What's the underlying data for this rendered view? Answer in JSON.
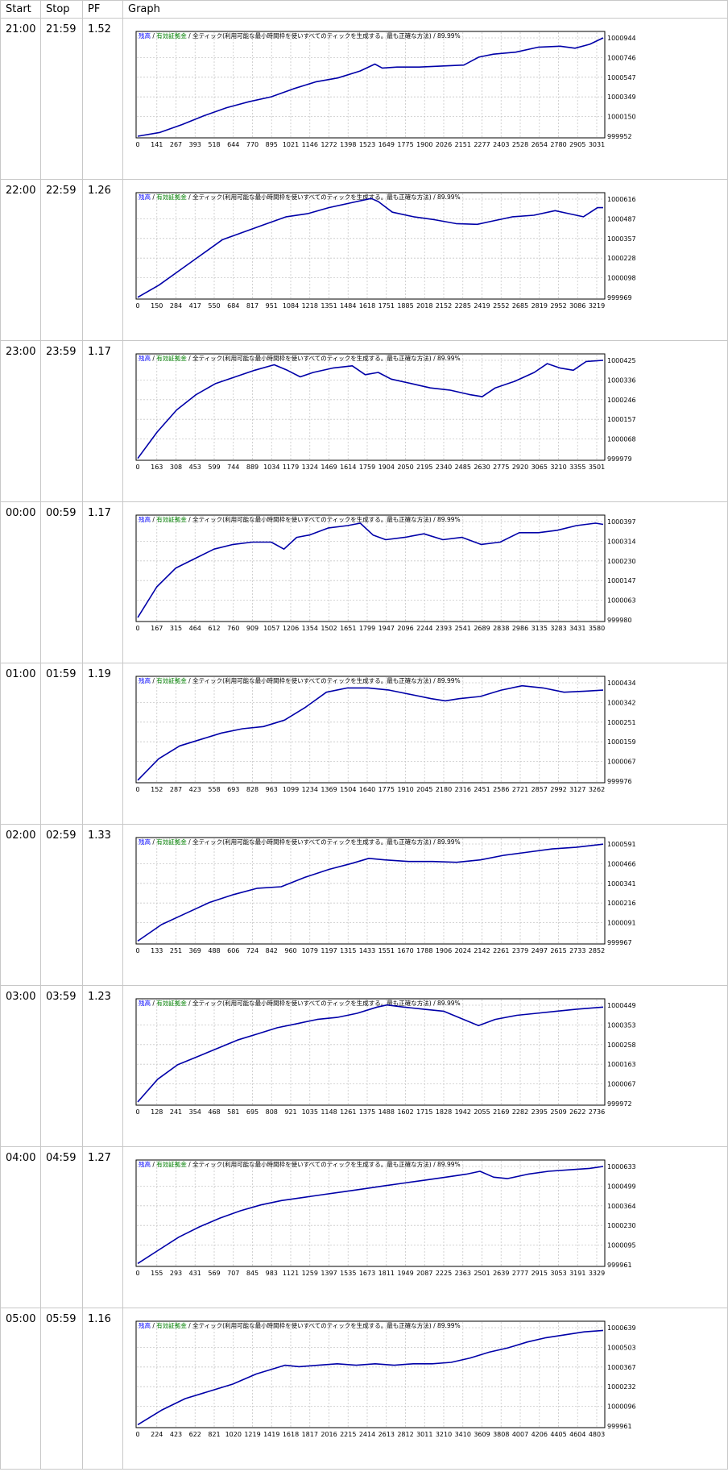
{
  "headers": {
    "start": "Start",
    "stop": "Stop",
    "pf": "PF",
    "graph": "Graph"
  },
  "colors": {
    "line": "#0000a8",
    "grid": "#c8c8c8",
    "title_blue": "#0000ff",
    "title_green": "#008000"
  },
  "rows": [
    {
      "start": "21:00",
      "stop": "21:59",
      "pf": "1.52",
      "chart_data": {
        "type": "line",
        "title_parts": {
          "balance": "残高",
          "sep1": " / ",
          "margin": "有効証拠金",
          "sep2": " / ",
          "mode": "全ティック(利用可能な最小時間枠を使いすべてのティックを生成する。最も正確な方法)",
          "quality": " / 89.99%"
        },
        "x_ticks": [
          "0",
          "141",
          "267",
          "393",
          "518",
          "644",
          "770",
          "895",
          "1021",
          "1146",
          "1272",
          "1398",
          "1523",
          "1649",
          "1775",
          "1900",
          "2026",
          "2151",
          "2277",
          "2403",
          "2528",
          "2654",
          "2780",
          "2905",
          "3031"
        ],
        "y_ticks": [
          "1000944",
          "1000746",
          "1000547",
          "1000349",
          "1000150",
          "999952"
        ],
        "xlim": [
          0,
          3140
        ],
        "ylim": [
          999952,
          1000944
        ],
        "x": [
          0,
          150,
          300,
          450,
          600,
          750,
          900,
          1050,
          1200,
          1350,
          1500,
          1600,
          1650,
          1750,
          1900,
          2050,
          2200,
          2300,
          2400,
          2550,
          2700,
          2850,
          2950,
          3050,
          3140
        ],
        "y": [
          999952,
          999990,
          1000070,
          1000160,
          1000240,
          1000300,
          1000350,
          1000430,
          1000500,
          1000540,
          1000610,
          1000680,
          1000640,
          1000650,
          1000650,
          1000660,
          1000670,
          1000750,
          1000780,
          1000800,
          1000850,
          1000860,
          1000840,
          1000880,
          1000944
        ]
      }
    },
    {
      "start": "22:00",
      "stop": "22:59",
      "pf": "1.26",
      "chart_data": {
        "type": "line",
        "title_parts": {
          "balance": "残高",
          "sep1": " / ",
          "margin": "有効証拠金",
          "sep2": " / ",
          "mode": "全ティック(利用可能な最小時間枠を使いすべてのティックを生成する。最も正確な方法)",
          "quality": " / 89.99%"
        },
        "x_ticks": [
          "0",
          "150",
          "284",
          "417",
          "550",
          "684",
          "817",
          "951",
          "1084",
          "1218",
          "1351",
          "1484",
          "1618",
          "1751",
          "1885",
          "2018",
          "2152",
          "2285",
          "2419",
          "2552",
          "2685",
          "2819",
          "2952",
          "3086",
          "3219"
        ],
        "y_ticks": [
          "1000616",
          "1000487",
          "1000357",
          "1000228",
          "1000098",
          "999969"
        ],
        "xlim": [
          0,
          3290
        ],
        "ylim": [
          999969,
          1000616
        ],
        "x": [
          0,
          150,
          300,
          450,
          600,
          750,
          900,
          1050,
          1200,
          1350,
          1500,
          1650,
          1700,
          1800,
          1950,
          2100,
          2250,
          2400,
          2500,
          2650,
          2800,
          2950,
          3050,
          3150,
          3250,
          3290
        ],
        "y": [
          999970,
          1000050,
          1000150,
          1000250,
          1000350,
          1000400,
          1000450,
          1000500,
          1000520,
          1000560,
          1000590,
          1000620,
          1000600,
          1000530,
          1000500,
          1000480,
          1000455,
          1000450,
          1000470,
          1000500,
          1000510,
          1000540,
          1000520,
          1000500,
          1000560,
          1000560
        ]
      }
    },
    {
      "start": "23:00",
      "stop": "23:59",
      "pf": "1.17",
      "chart_data": {
        "type": "line",
        "title_parts": {
          "balance": "残高",
          "sep1": " / ",
          "margin": "有効証拠金",
          "sep2": " / ",
          "mode": "全ティック(利用可能な最小時間枠を使いすべてのティックを生成する。最も正確な方法)",
          "quality": " / 89.99%"
        },
        "x_ticks": [
          "0",
          "163",
          "308",
          "453",
          "599",
          "744",
          "889",
          "1034",
          "1179",
          "1324",
          "1469",
          "1614",
          "1759",
          "1904",
          "2050",
          "2195",
          "2340",
          "2485",
          "2630",
          "2775",
          "2920",
          "3065",
          "3210",
          "3355",
          "3501"
        ],
        "y_ticks": [
          "1000425",
          "1000336",
          "1000246",
          "1000157",
          "1000068",
          "999979"
        ],
        "xlim": [
          0,
          3580
        ],
        "ylim": [
          999979,
          1000425
        ],
        "x": [
          0,
          150,
          300,
          450,
          600,
          750,
          900,
          1050,
          1150,
          1250,
          1350,
          1500,
          1650,
          1750,
          1850,
          1950,
          2100,
          2250,
          2400,
          2550,
          2650,
          2750,
          2900,
          3050,
          3150,
          3250,
          3350,
          3450,
          3580
        ],
        "y": [
          999980,
          1000100,
          1000200,
          1000270,
          1000320,
          1000350,
          1000380,
          1000405,
          1000380,
          1000350,
          1000370,
          1000390,
          1000400,
          1000360,
          1000370,
          1000340,
          1000320,
          1000300,
          1000290,
          1000270,
          1000260,
          1000300,
          1000330,
          1000370,
          1000410,
          1000390,
          1000380,
          1000420,
          1000425
        ]
      }
    },
    {
      "start": "00:00",
      "stop": "00:59",
      "pf": "1.17",
      "chart_data": {
        "type": "line",
        "title_parts": {
          "balance": "残高",
          "sep1": " / ",
          "margin": "有効証拠金",
          "sep2": " / ",
          "mode": "全ティック(利用可能な最小時間枠を使いすべてのティックを生成する。最も正確な方法)",
          "quality": " / 89.99%"
        },
        "x_ticks": [
          "0",
          "167",
          "315",
          "464",
          "612",
          "760",
          "909",
          "1057",
          "1206",
          "1354",
          "1502",
          "1651",
          "1799",
          "1947",
          "2096",
          "2244",
          "2393",
          "2541",
          "2689",
          "2838",
          "2986",
          "3135",
          "3283",
          "3431",
          "3580"
        ],
        "y_ticks": [
          "1000397",
          "1000314",
          "1000230",
          "1000147",
          "1000063",
          "999980"
        ],
        "xlim": [
          0,
          3660
        ],
        "ylim": [
          999980,
          1000397
        ],
        "x": [
          0,
          150,
          300,
          450,
          600,
          750,
          900,
          1050,
          1150,
          1250,
          1350,
          1500,
          1650,
          1750,
          1850,
          1950,
          2100,
          2250,
          2400,
          2550,
          2700,
          2850,
          3000,
          3150,
          3300,
          3450,
          3600,
          3660
        ],
        "y": [
          999990,
          1000120,
          1000200,
          1000240,
          1000280,
          1000300,
          1000310,
          1000310,
          1000280,
          1000330,
          1000340,
          1000370,
          1000380,
          1000390,
          1000340,
          1000320,
          1000330,
          1000345,
          1000320,
          1000330,
          1000300,
          1000310,
          1000350,
          1000350,
          1000360,
          1000380,
          1000390,
          1000385
        ]
      }
    },
    {
      "start": "01:00",
      "stop": "01:59",
      "pf": "1.19",
      "chart_data": {
        "type": "line",
        "title_parts": {
          "balance": "残高",
          "sep1": " / ",
          "margin": "有効証拠金",
          "sep2": " / ",
          "mode": "全ティック(利用可能な最小時間枠を使いすべてのティックを生成する。最も正確な方法)",
          "quality": " / 89.99%"
        },
        "x_ticks": [
          "0",
          "152",
          "287",
          "423",
          "558",
          "693",
          "828",
          "963",
          "1099",
          "1234",
          "1369",
          "1504",
          "1640",
          "1775",
          "1910",
          "2045",
          "2180",
          "2316",
          "2451",
          "2586",
          "2721",
          "2857",
          "2992",
          "3127",
          "3262"
        ],
        "y_ticks": [
          "1000434",
          "1000342",
          "1000251",
          "1000159",
          "1000067",
          "999976"
        ],
        "xlim": [
          0,
          3330
        ],
        "ylim": [
          999976,
          1000434
        ],
        "x": [
          0,
          150,
          300,
          450,
          600,
          750,
          900,
          1050,
          1200,
          1350,
          1500,
          1650,
          1800,
          1950,
          2100,
          2200,
          2300,
          2450,
          2600,
          2750,
          2900,
          3050,
          3200,
          3330
        ],
        "y": [
          999980,
          1000080,
          1000140,
          1000170,
          1000200,
          1000220,
          1000230,
          1000260,
          1000320,
          1000390,
          1000410,
          1000410,
          1000400,
          1000380,
          1000360,
          1000350,
          1000360,
          1000370,
          1000400,
          1000420,
          1000410,
          1000390,
          1000395,
          1000400
        ]
      }
    },
    {
      "start": "02:00",
      "stop": "02:59",
      "pf": "1.33",
      "chart_data": {
        "type": "line",
        "title_parts": {
          "balance": "残高",
          "sep1": " / ",
          "margin": "有効証拠金",
          "sep2": " / ",
          "mode": "全ティック(利用可能な最小時間枠を使いすべてのティックを生成する。最も正確な方法)",
          "quality": " / 89.99%"
        },
        "x_ticks": [
          "0",
          "133",
          "251",
          "369",
          "488",
          "606",
          "724",
          "842",
          "960",
          "1079",
          "1197",
          "1315",
          "1433",
          "1551",
          "1670",
          "1788",
          "1906",
          "2024",
          "2142",
          "2261",
          "2379",
          "2497",
          "2615",
          "2733",
          "2852"
        ],
        "y_ticks": [
          "1000591",
          "1000466",
          "1000341",
          "1000216",
          "1000091",
          "999967"
        ],
        "xlim": [
          0,
          2920
        ],
        "ylim": [
          999967,
          1000591
        ],
        "x": [
          0,
          150,
          300,
          450,
          600,
          750,
          900,
          1050,
          1200,
          1350,
          1450,
          1550,
          1700,
          1850,
          2000,
          2150,
          2300,
          2450,
          2600,
          2750,
          2920
        ],
        "y": [
          999975,
          1000080,
          1000150,
          1000220,
          1000270,
          1000310,
          1000320,
          1000380,
          1000430,
          1000470,
          1000500,
          1000490,
          1000480,
          1000480,
          1000475,
          1000490,
          1000520,
          1000540,
          1000560,
          1000570,
          1000590
        ]
      }
    },
    {
      "start": "03:00",
      "stop": "03:59",
      "pf": "1.23",
      "chart_data": {
        "type": "line",
        "title_parts": {
          "balance": "残高",
          "sep1": " / ",
          "margin": "有効証拠金",
          "sep2": " / ",
          "mode": "全ティック(利用可能な最小時間枠を使いすべてのティックを生成する。最も正確な方法)",
          "quality": " / 89.99%"
        },
        "x_ticks": [
          "0",
          "128",
          "241",
          "354",
          "468",
          "581",
          "695",
          "808",
          "921",
          "1035",
          "1148",
          "1261",
          "1375",
          "1488",
          "1602",
          "1715",
          "1828",
          "1942",
          "2055",
          "2169",
          "2282",
          "2395",
          "2509",
          "2622",
          "2736"
        ],
        "y_ticks": [
          "1000449",
          "1000353",
          "1000258",
          "1000163",
          "1000067",
          "999972"
        ],
        "xlim": [
          0,
          2800
        ],
        "ylim": [
          999972,
          1000449
        ],
        "x": [
          0,
          120,
          240,
          360,
          480,
          600,
          720,
          840,
          960,
          1080,
          1200,
          1320,
          1440,
          1500,
          1600,
          1720,
          1840,
          1960,
          2050,
          2150,
          2280,
          2400,
          2520,
          2640,
          2800
        ],
        "y": [
          999980,
          1000090,
          1000160,
          1000200,
          1000240,
          1000280,
          1000310,
          1000340,
          1000360,
          1000380,
          1000390,
          1000410,
          1000440,
          1000450,
          1000440,
          1000430,
          1000420,
          1000380,
          1000350,
          1000380,
          1000400,
          1000410,
          1000420,
          1000430,
          1000440
        ]
      }
    },
    {
      "start": "04:00",
      "stop": "04:59",
      "pf": "1.27",
      "chart_data": {
        "type": "line",
        "title_parts": {
          "balance": "残高",
          "sep1": " / ",
          "margin": "有効証拠金",
          "sep2": " / ",
          "mode": "全ティック(利用可能な最小時間枠を使いすべてのティックを生成する。最も正確な方法)",
          "quality": " / 89.99%"
        },
        "x_ticks": [
          "0",
          "155",
          "293",
          "431",
          "569",
          "707",
          "845",
          "983",
          "1121",
          "1259",
          "1397",
          "1535",
          "1673",
          "1811",
          "1949",
          "2087",
          "2225",
          "2363",
          "2501",
          "2639",
          "2777",
          "2915",
          "3053",
          "3191",
          "3329"
        ],
        "y_ticks": [
          "1000633",
          "1000499",
          "1000364",
          "1000230",
          "1000095",
          "999961"
        ],
        "xlim": [
          0,
          3400
        ],
        "ylim": [
          999961,
          1000633
        ],
        "x": [
          0,
          150,
          300,
          450,
          600,
          750,
          900,
          1050,
          1200,
          1350,
          1500,
          1650,
          1800,
          1950,
          2100,
          2250,
          2400,
          2500,
          2600,
          2700,
          2850,
          3000,
          3150,
          3300,
          3400
        ],
        "y": [
          999970,
          1000060,
          1000150,
          1000220,
          1000280,
          1000330,
          1000370,
          1000400,
          1000420,
          1000440,
          1000460,
          1000480,
          1000500,
          1000520,
          1000540,
          1000560,
          1000580,
          1000600,
          1000560,
          1000550,
          1000580,
          1000600,
          1000610,
          1000620,
          1000633
        ]
      }
    },
    {
      "start": "05:00",
      "stop": "05:59",
      "pf": "1.16",
      "chart_data": {
        "type": "line",
        "title_parts": {
          "balance": "残高",
          "sep1": " / ",
          "margin": "有効証拠金",
          "sep2": " / ",
          "mode": "全ティック(利用可能な最小時間枠を使いすべてのティックを生成する。最も正確な方法)",
          "quality": " / 89.99%"
        },
        "x_ticks": [
          "0",
          "224",
          "423",
          "622",
          "821",
          "1020",
          "1219",
          "1419",
          "1618",
          "1817",
          "2016",
          "2215",
          "2414",
          "2613",
          "2812",
          "3011",
          "3210",
          "3410",
          "3609",
          "3808",
          "4007",
          "4206",
          "4405",
          "4604",
          "4803"
        ],
        "y_ticks": [
          "1000639",
          "1000503",
          "1000367",
          "1000232",
          "1000096",
          "999961"
        ],
        "xlim": [
          0,
          4900
        ],
        "ylim": [
          999961,
          1000639
        ],
        "x": [
          0,
          250,
          500,
          750,
          1000,
          1250,
          1400,
          1550,
          1700,
          1900,
          2100,
          2300,
          2500,
          2700,
          2900,
          3100,
          3300,
          3500,
          3700,
          3900,
          4100,
          4300,
          4500,
          4700,
          4900
        ],
        "y": [
          999970,
          1000070,
          1000150,
          1000200,
          1000250,
          1000320,
          1000350,
          1000380,
          1000370,
          1000380,
          1000390,
          1000380,
          1000390,
          1000380,
          1000390,
          1000390,
          1000400,
          1000430,
          1000470,
          1000500,
          1000540,
          1000570,
          1000590,
          1000610,
          1000620
        ]
      }
    }
  ]
}
